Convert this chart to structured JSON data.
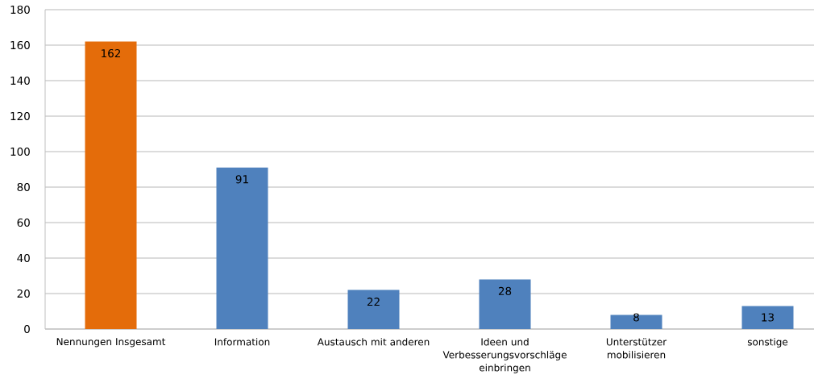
{
  "chart_data": {
    "type": "bar",
    "categories": [
      "Nennungen Insgesamt",
      "Information",
      "Austausch mit anderen",
      "Ideen und Verbesserungsvorschläge einbringen",
      "Unterstützer mobilisieren",
      "sonstige"
    ],
    "values": [
      162,
      91,
      22,
      28,
      8,
      13
    ],
    "colors": [
      "#e46c0a",
      "#4f81bd",
      "#4f81bd",
      "#4f81bd",
      "#4f81bd",
      "#4f81bd"
    ],
    "ylim": [
      0,
      180
    ],
    "yticks": [
      0,
      20,
      40,
      60,
      80,
      100,
      120,
      140,
      160,
      180
    ],
    "grid": "y",
    "data_labels": true
  }
}
